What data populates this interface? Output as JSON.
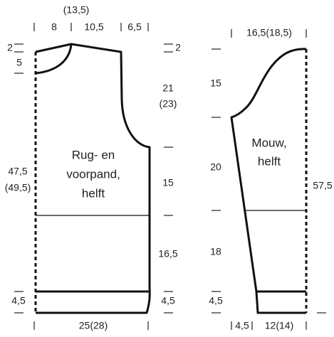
{
  "front": {
    "label": [
      "Rug- en",
      "voorpand,",
      "helft"
    ],
    "neck_width_alt": "(13,5)",
    "top_widths": [
      "8",
      "10,5",
      "6,5"
    ],
    "left_heights": [
      "2",
      "5",
      "47,5",
      "(49,5)",
      "4,5"
    ],
    "right_heights": [
      "2",
      "21",
      "(23)",
      "15",
      "16,5",
      "4,5"
    ],
    "bottom_width": "25(28)"
  },
  "sleeve": {
    "label": [
      "Mouw,",
      "helft"
    ],
    "top_width": "16,5(18,5)",
    "left_heights": [
      "15",
      "20",
      "18",
      "4,5"
    ],
    "right_height": "57,5",
    "bottom_widths": [
      "4,5",
      "12(14)"
    ]
  }
}
